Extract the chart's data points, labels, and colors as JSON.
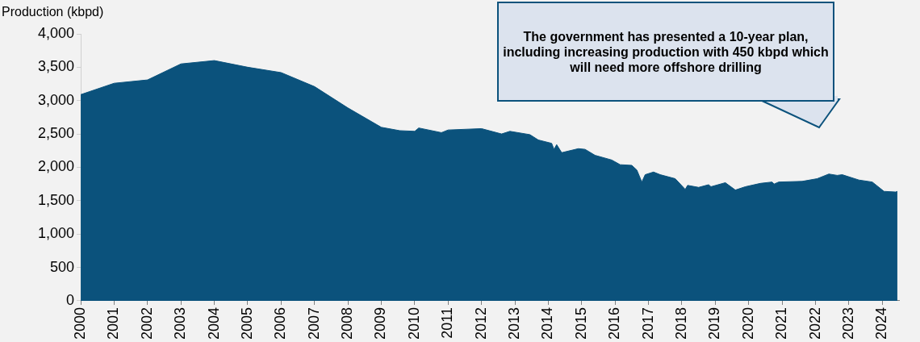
{
  "chart_data": {
    "type": "area",
    "ylabel": "Production (kbpd)",
    "annotations": [
      "The government has presented a 10-year plan, including increasing production with 450 kbpd which will need more offshore drilling"
    ],
    "x": [
      2000,
      2001,
      2002,
      2003,
      2004,
      2005,
      2006,
      2007,
      2008,
      2009,
      2009.55,
      2010,
      2010.12,
      2010.8,
      2011,
      2012,
      2012.6,
      2012.85,
      2013.45,
      2013.7,
      2014.1,
      2014.17,
      2014.25,
      2014.4,
      2014.9,
      2015.1,
      2015.4,
      2015.9,
      2016.15,
      2016.5,
      2016.65,
      2016.8,
      2016.9,
      2017.15,
      2017.35,
      2017.8,
      2018.1,
      2018.17,
      2018.5,
      2018.8,
      2018.87,
      2019.3,
      2019.6,
      2019.9,
      2020.35,
      2020.7,
      2020.76,
      2020.9,
      2021.6,
      2022.05,
      2022.4,
      2022.65,
      2022.8,
      2023.3,
      2023.7,
      2024.05,
      2024.4,
      2024.45
    ],
    "series": [
      {
        "color": "#0b527c",
        "values": [
          3090,
          3260,
          3310,
          3550,
          3600,
          3500,
          3420,
          3210,
          2890,
          2600,
          2550,
          2540,
          2590,
          2520,
          2560,
          2580,
          2500,
          2540,
          2490,
          2410,
          2360,
          2270,
          2340,
          2220,
          2280,
          2270,
          2180,
          2110,
          2040,
          2030,
          1960,
          1780,
          1890,
          1930,
          1890,
          1830,
          1670,
          1730,
          1700,
          1740,
          1710,
          1770,
          1660,
          1710,
          1760,
          1780,
          1750,
          1780,
          1790,
          1830,
          1900,
          1880,
          1890,
          1810,
          1780,
          1640,
          1630,
          1640
        ]
      }
    ],
    "xlim": [
      2000,
      2024.5
    ],
    "xticks": [
      2000,
      2001,
      2002,
      2003,
      2004,
      2005,
      2006,
      2007,
      2008,
      2009,
      2010,
      2011,
      2012,
      2013,
      2014,
      2015,
      2016,
      2017,
      2018,
      2019,
      2020,
      2021,
      2022,
      2023,
      2024
    ],
    "ylim": [
      0,
      4000
    ],
    "yticks": [
      0,
      500,
      {
        "value": 1000,
        "label": "1,000"
      },
      {
        "value": 1500,
        "label": "1,500"
      },
      {
        "value": 2000,
        "label": "2,000"
      },
      {
        "value": 2500,
        "label": "2,500"
      },
      {
        "value": 3000,
        "label": "3,000"
      },
      {
        "value": 3500,
        "label": "3,500"
      },
      {
        "value": 4000,
        "label": "4,000"
      }
    ]
  }
}
